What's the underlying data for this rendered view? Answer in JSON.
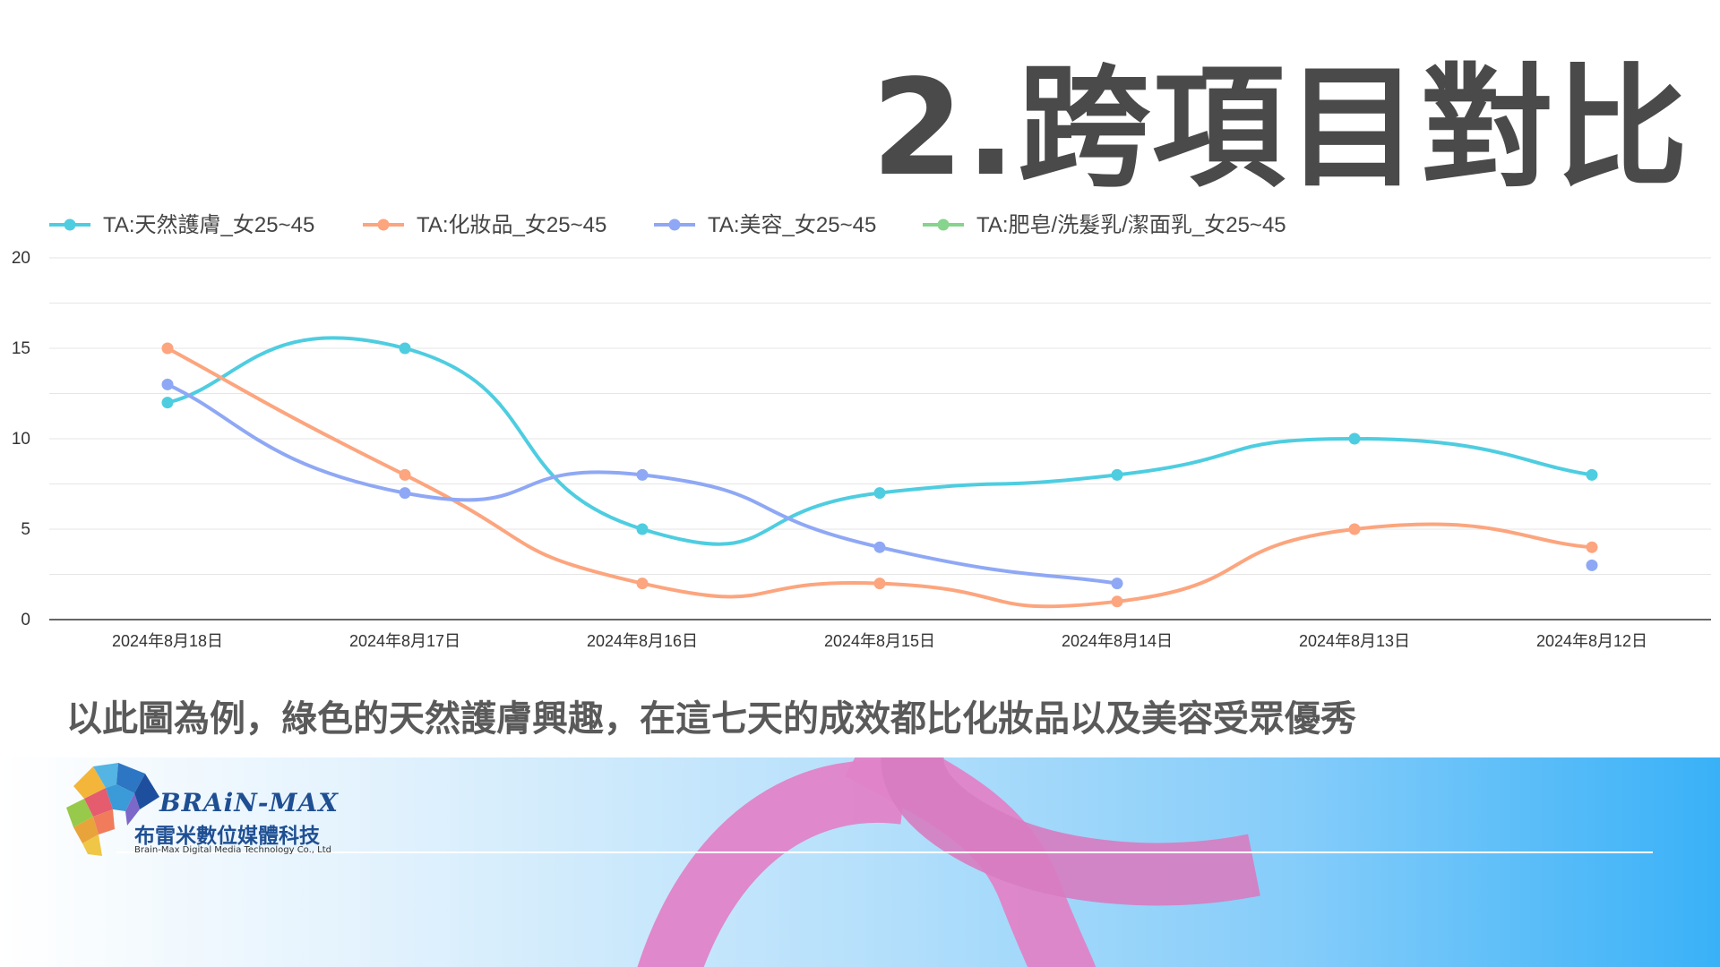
{
  "slide": {
    "title": "2.跨項目對比",
    "caption": "以此圖為例，綠色的天然護膚興趣，在這七天的成效都比化妝品以及美容受眾優秀"
  },
  "logo": {
    "brand": "BRAiN-MAX",
    "name_cn": "布雷米數位媒體科技",
    "name_en": "Brain-Max Digital Media Technology Co., Ltd"
  },
  "colors": {
    "title": "#4a4a4a",
    "caption": "#5a5a5a",
    "footer_gradient_end": "#39b1f7",
    "ribbon": "#e083c8"
  },
  "chart_data": {
    "type": "line",
    "categories": [
      "2024年8月18日",
      "2024年8月17日",
      "2024年8月16日",
      "2024年8月15日",
      "2024年8月14日",
      "2024年8月13日",
      "2024年8月12日"
    ],
    "ylim": [
      0,
      20
    ],
    "yticks": [
      0,
      5,
      10,
      15,
      20
    ],
    "grid": true,
    "legend_position": "top-left",
    "series": [
      {
        "name": "TA:天然護膚_女25~45",
        "color": "#4ecde0",
        "values": [
          12,
          15,
          5,
          7,
          8,
          10,
          8
        ]
      },
      {
        "name": "TA:化妝品_女25~45",
        "color": "#fca57e",
        "values": [
          15,
          8,
          2,
          2,
          1,
          5,
          4
        ]
      },
      {
        "name": "TA:美容_女25~45",
        "color": "#8fa8f5",
        "values": [
          13,
          7,
          8,
          4,
          2,
          null,
          3
        ]
      },
      {
        "name": "TA:肥皂/洗髮乳/潔面乳_女25~45",
        "color": "#86d48d",
        "values": [
          null,
          null,
          null,
          null,
          null,
          null,
          null
        ]
      }
    ]
  }
}
